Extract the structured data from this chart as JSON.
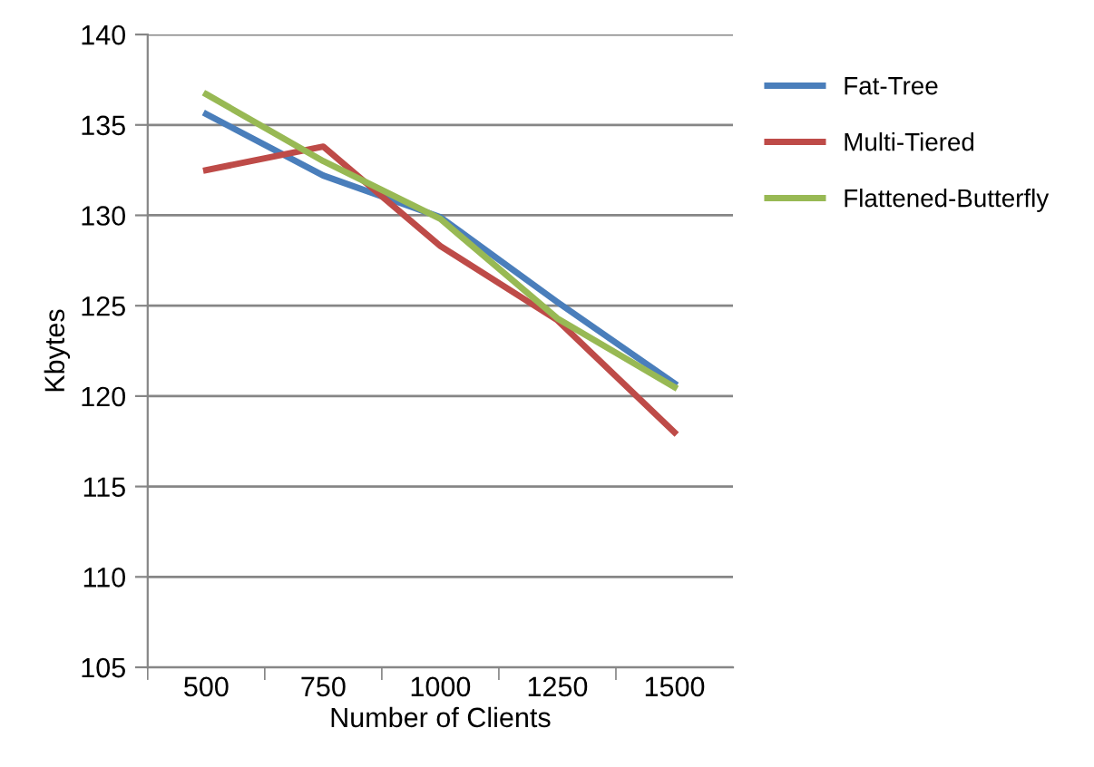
{
  "chart_data": {
    "type": "line",
    "xlabel": "Number of Clients",
    "ylabel": "Kbytes",
    "categories": [
      "500",
      "750",
      "1000",
      "1250",
      "1500"
    ],
    "series": [
      {
        "name": "Fat-Tree",
        "color": "#4a7ebb",
        "values": [
          135.6,
          132.2,
          129.9,
          125.2,
          120.7
        ]
      },
      {
        "name": "Multi-Tiered",
        "color": "#be4b48",
        "values": [
          132.5,
          133.8,
          128.3,
          124.2,
          118.0
        ]
      },
      {
        "name": "Flattened-Butterfly",
        "color": "#98b954",
        "values": [
          136.7,
          133.0,
          129.8,
          124.3,
          120.5
        ]
      }
    ],
    "ylim": [
      105,
      140
    ],
    "yticks": [
      105,
      110,
      115,
      120,
      125,
      130,
      135,
      140
    ],
    "grid": "y",
    "legend": "right",
    "marker": "none",
    "line_style": "solid"
  }
}
